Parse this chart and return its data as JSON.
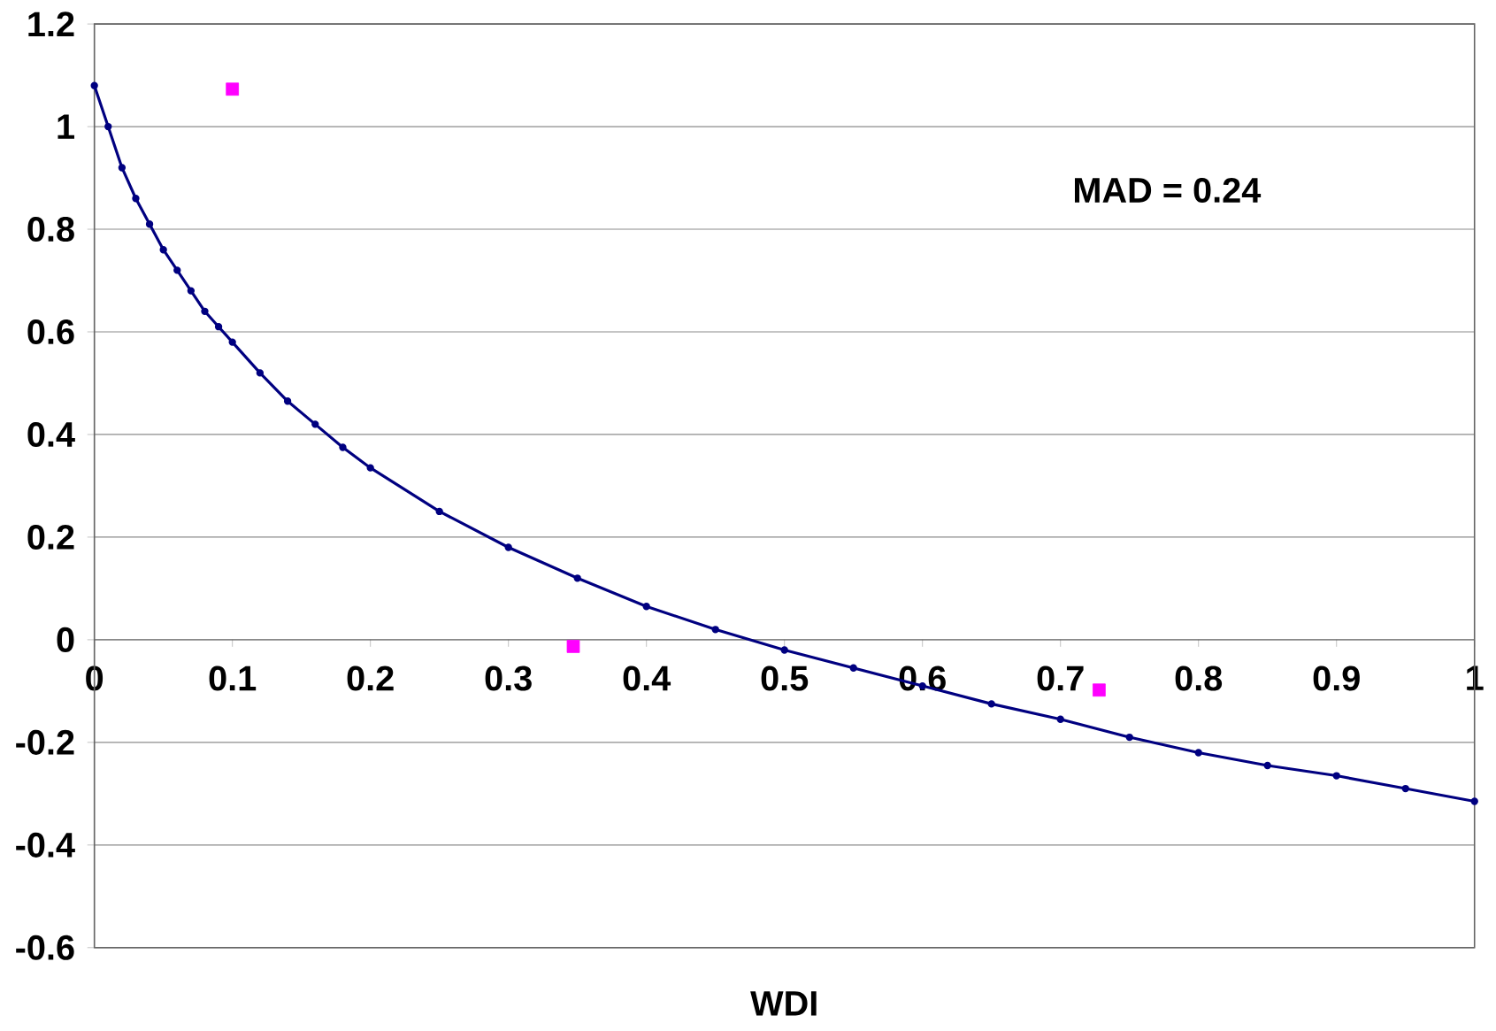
{
  "chart_data": {
    "type": "line",
    "xlabel": "WDI",
    "annotations": [
      "MAD = 0.24"
    ],
    "xlim": [
      0,
      1
    ],
    "xticks": [
      0,
      0.1,
      0.2,
      0.3,
      0.4,
      0.5,
      0.6,
      0.7,
      0.8,
      0.9,
      1
    ],
    "ylim": [
      -0.6,
      1.2
    ],
    "yticks": [
      -0.6,
      -0.4,
      -0.2,
      0,
      0.2,
      0.4,
      0.6,
      0.8,
      1,
      1.2
    ],
    "grid": "y",
    "series": [
      {
        "color": "#000080",
        "marker": "circle",
        "x": [
          0,
          0.01,
          0.02,
          0.03,
          0.04,
          0.05,
          0.06,
          0.07,
          0.08,
          0.09,
          0.1,
          0.12,
          0.14,
          0.16,
          0.18,
          0.2,
          0.25,
          0.3,
          0.35,
          0.4,
          0.45,
          0.5,
          0.55,
          0.6,
          0.65,
          0.7,
          0.75,
          0.8,
          0.85,
          0.9,
          0.95,
          1
        ],
        "values": [
          1.08,
          1.0,
          0.92,
          0.86,
          0.81,
          0.76,
          0.72,
          0.68,
          0.64,
          0.61,
          0.58,
          0.52,
          0.465,
          0.42,
          0.375,
          0.335,
          0.25,
          0.18,
          0.12,
          0.065,
          0.02,
          -0.02,
          -0.055,
          -0.09,
          -0.125,
          -0.155,
          -0.19,
          -0.22,
          -0.245,
          -0.265,
          -0.29,
          -0.315
        ]
      },
      {
        "type": "scatter",
        "color": "#ff00ff",
        "marker": "square",
        "x": [
          0.1,
          0.347,
          0.728
        ],
        "values": [
          1.073,
          -0.013,
          -0.098
        ]
      }
    ]
  }
}
